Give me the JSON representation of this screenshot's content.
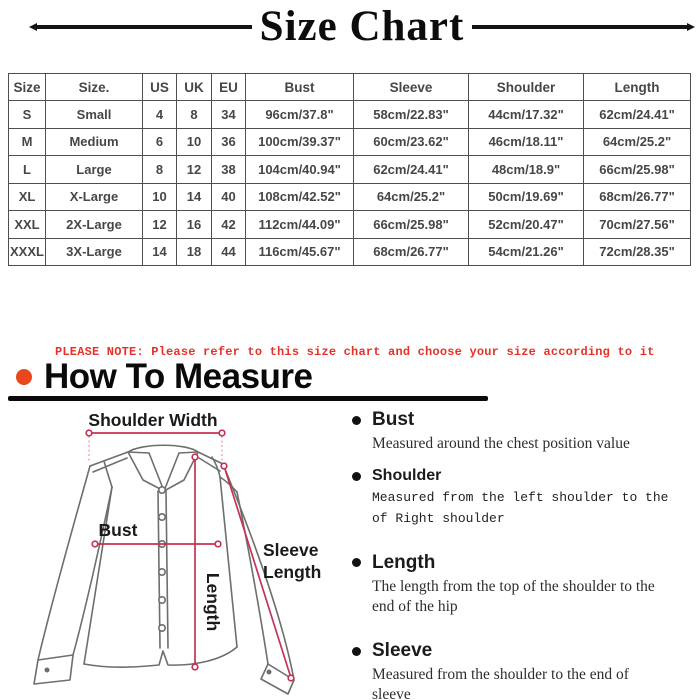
{
  "title": "Size Chart",
  "size_table": {
    "headers": [
      "Size",
      "Size.",
      "US",
      "UK",
      "EU",
      "Bust",
      "Sleeve",
      "Shoulder",
      "Length"
    ],
    "rows": [
      [
        "S",
        "Small",
        "4",
        "8",
        "34",
        "96cm/37.8\"",
        "58cm/22.83\"",
        "44cm/17.32\"",
        "62cm/24.41\""
      ],
      [
        "M",
        "Medium",
        "6",
        "10",
        "36",
        "100cm/39.37\"",
        "60cm/23.62\"",
        "46cm/18.11\"",
        "64cm/25.2\""
      ],
      [
        "L",
        "Large",
        "8",
        "12",
        "38",
        "104cm/40.94\"",
        "62cm/24.41\"",
        "48cm/18.9\"",
        "66cm/25.98\""
      ],
      [
        "XL",
        "X-Large",
        "10",
        "14",
        "40",
        "108cm/42.52\"",
        "64cm/25.2\"",
        "50cm/19.69\"",
        "68cm/26.77\""
      ],
      [
        "XXL",
        "2X-Large",
        "12",
        "16",
        "42",
        "112cm/44.09\"",
        "66cm/25.98\"",
        "52cm/20.47\"",
        "70cm/27.56\""
      ],
      [
        "XXXL",
        "3X-Large",
        "14",
        "18",
        "44",
        "116cm/45.67\"",
        "68cm/26.77\"",
        "54cm/21.26\"",
        "72cm/28.35\""
      ]
    ]
  },
  "note": "PLEASE NOTE: Please refer to this size chart and choose your size according to it",
  "how_to_measure": {
    "heading": "How To Measure",
    "diagram_labels": {
      "shoulder_width": "Shoulder Width",
      "bust": "Bust",
      "length": "Length",
      "sleeve_length_line1": "Sleeve",
      "sleeve_length_line2": "Length"
    },
    "items": [
      {
        "term": "Bust",
        "desc": "Measured around the chest position value"
      },
      {
        "term": "Shoulder",
        "desc": "Measured from the left shoulder to the of Right shoulder"
      },
      {
        "term": "Length",
        "desc": "The length from the top of the shoulder to the end of the hip"
      },
      {
        "term": "Sleeve",
        "desc": "Measured from the shoulder to the end of sleeve"
      }
    ]
  },
  "colors": {
    "measure_line_red": "#c43355",
    "dotted_guide_pink": "#dfa3b4",
    "note_red": "#e53228",
    "bullseye_orange": "#e8481b",
    "table_text_gray": "#474747",
    "shirt_outline_gray": "#6e6e6e",
    "heading_black": "#0a0a0a"
  }
}
